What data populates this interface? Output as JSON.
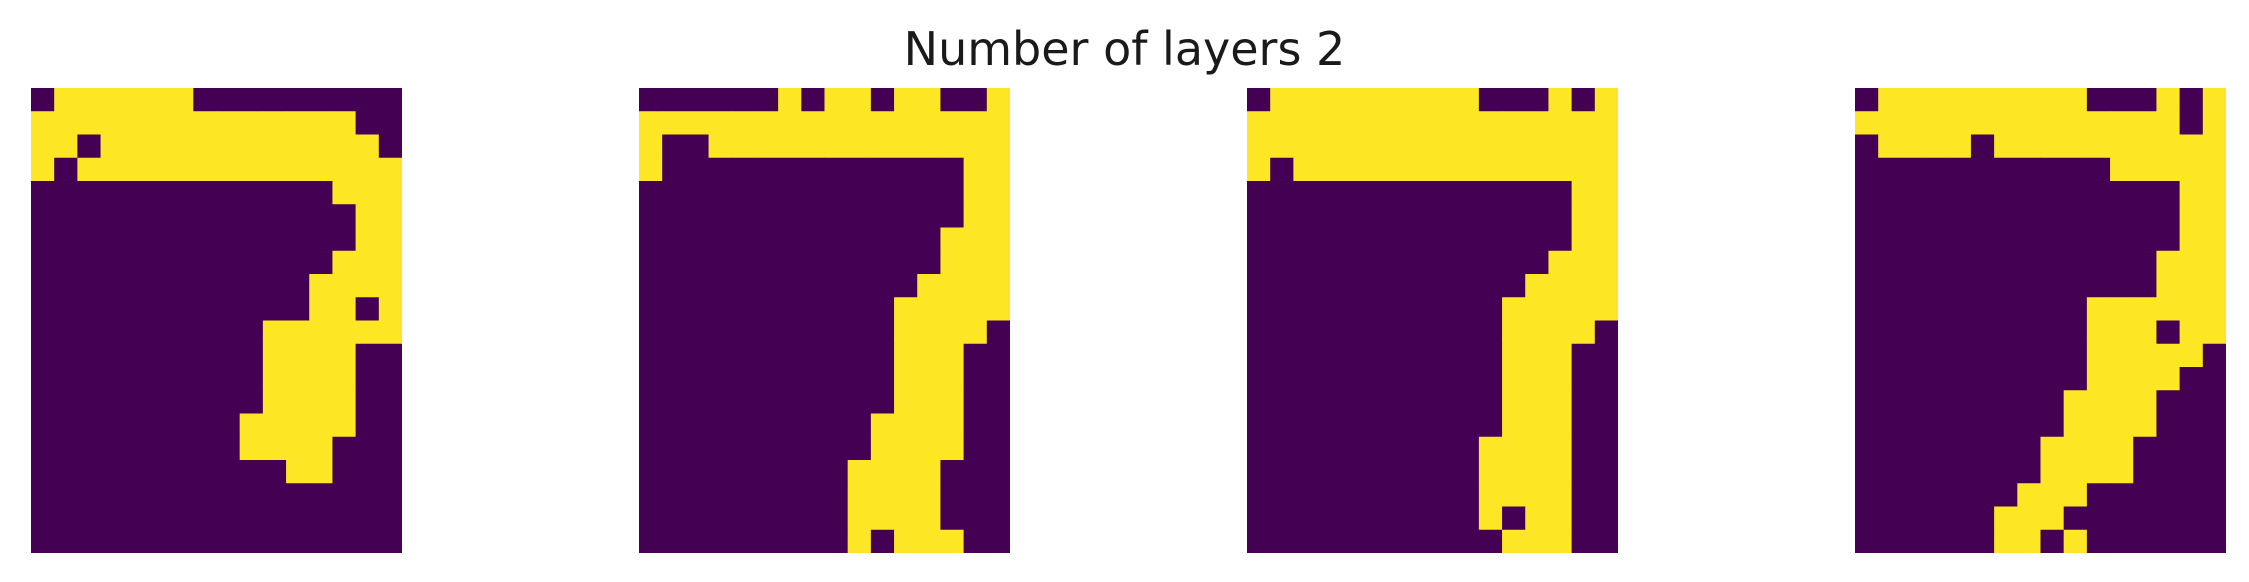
{
  "chart_data": {
    "type": "heatmap",
    "title": "Number of layers 2",
    "colors": {
      "on": "#fde725",
      "off": "#440154"
    },
    "panels": [
      {
        "rows": [
          "0111111000000000",
          "1111111111111100",
          "1101111111111110",
          "1011111111111111",
          "0000000000000111",
          "0000000000000011",
          "0000000000000011",
          "0000000000000111",
          "0000000000001111",
          "0000000000001101",
          "0000000000111111",
          "0000000000111100",
          "0000000000111100",
          "0000000000111100",
          "0000000001111100",
          "0000000001111000",
          "0000000000011000",
          "0000000000000000",
          "0000000000000000",
          "0000000000000000"
        ]
      },
      {
        "rows": [
          "0000001011011001",
          "1111111111111111",
          "1001111111111111",
          "1000000000000011",
          "0000000000000011",
          "0000000000000011",
          "0000000000000111",
          "0000000000000111",
          "0000000000001111",
          "0000000000011111",
          "0000000000011110",
          "0000000000011100",
          "0000000000011100",
          "0000000000011100",
          "0000000000111100",
          "0000000000111100",
          "0000000001111000",
          "0000000001111000",
          "0000000001111000",
          "0000000001011100"
        ]
      },
      {
        "rows": [
          "0111111111000101",
          "1111111111111111",
          "1111111111111111",
          "1011111111111111",
          "0000000000000011",
          "0000000000000011",
          "0000000000000011",
          "0000000000000111",
          "0000000000001111",
          "0000000000011111",
          "0000000000011110",
          "0000000000011100",
          "0000000000011100",
          "0000000000011100",
          "0000000000011100",
          "0000000000111100",
          "0000000000111100",
          "0000000000111100",
          "0000000000101100",
          "0000000000011100"
        ]
      },
      {
        "rows": [
          "0111111111000101",
          "1111111111111101",
          "0111101111111111",
          "0000000000011111",
          "0000000000000011",
          "0000000000000011",
          "0000000000000011",
          "0000000000000111",
          "0000000000000111",
          "0000000000111111",
          "0000000000111011",
          "0000000000111110",
          "0000000000111100",
          "0000000001111000",
          "0000000001111000",
          "0000000011110000",
          "0000000011110000",
          "0000000111000000",
          "0000001110000000",
          "0000001101000000"
        ]
      }
    ]
  }
}
